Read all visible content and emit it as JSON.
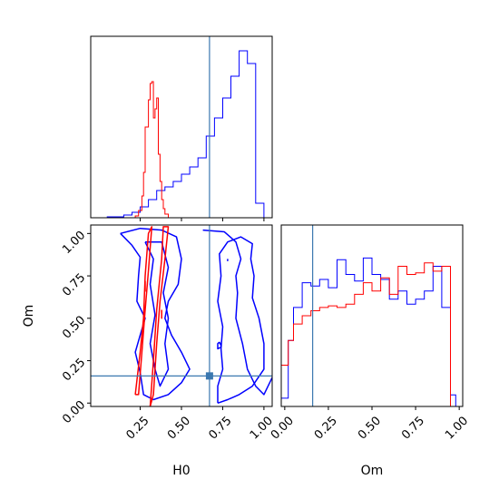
{
  "chart_data": {
    "type": "corner",
    "params": [
      "H0",
      "Om"
    ],
    "truth": {
      "H0": 0.67,
      "Om": 0.16
    },
    "colors": {
      "blue": "#0000ff",
      "red": "#ff0000",
      "truth": "#3b78b0"
    },
    "panels": [
      {
        "id": "hist-h0",
        "type": "histogram",
        "xlim": [
          -0.05,
          1.05
        ],
        "bins": [
          -0.05,
          0.0,
          0.05,
          0.1,
          0.15,
          0.2,
          0.25,
          0.3,
          0.35,
          0.4,
          0.45,
          0.5,
          0.55,
          0.6,
          0.65,
          0.7,
          0.75,
          0.8,
          0.85,
          0.9,
          0.95,
          1.0
        ],
        "series": [
          {
            "color": "blue",
            "values": [
              0.0,
              0.0,
              0.005,
              0.005,
              0.015,
              0.03,
              0.06,
              0.1,
              0.15,
              0.17,
              0.2,
              0.24,
              0.28,
              0.33,
              0.45,
              0.55,
              0.66,
              0.78,
              0.92,
              0.85,
              0.08
            ]
          }
        ],
        "peaked_series": [
          {
            "color": "red",
            "x": [
              0.15,
              0.2,
              0.22,
              0.24,
              0.26,
              0.27,
              0.28,
              0.29,
              0.3,
              0.31,
              0.32,
              0.33,
              0.34,
              0.35,
              0.36,
              0.37,
              0.38,
              0.39,
              0.4,
              0.42,
              0.45
            ],
            "values": [
              0.0,
              0.0,
              0.01,
              0.04,
              0.12,
              0.25,
              0.5,
              0.5,
              0.65,
              0.74,
              0.75,
              0.55,
              0.6,
              0.66,
              0.35,
              0.2,
              0.1,
              0.05,
              0.02,
              0.0,
              0.0
            ]
          }
        ]
      },
      {
        "id": "hist-om",
        "type": "histogram",
        "xlim": [
          -0.02,
          1.02
        ],
        "xticks": [
          0.0,
          0.25,
          0.5,
          0.75,
          1.0
        ],
        "xtick_labels": [
          "0.00",
          "0.25",
          "0.50",
          "0.75",
          "1.00"
        ],
        "xlabel": "Om",
        "bins": [
          -0.02,
          0.02,
          0.05,
          0.1,
          0.15,
          0.2,
          0.25,
          0.3,
          0.35,
          0.4,
          0.45,
          0.5,
          0.55,
          0.6,
          0.65,
          0.7,
          0.75,
          0.8,
          0.85,
          0.9,
          0.95,
          0.98,
          1.02
        ],
        "series": [
          {
            "color": "blue",
            "values": [
              0.05,
              0.4,
              0.6,
              0.75,
              0.73,
              0.77,
              0.72,
              0.89,
              0.8,
              0.76,
              0.9,
              0.8,
              0.77,
              0.65,
              0.7,
              0.62,
              0.65,
              0.7,
              0.85,
              0.6,
              0.07,
              0.0
            ]
          },
          {
            "color": "red",
            "values": [
              0.25,
              0.4,
              0.5,
              0.55,
              0.58,
              0.6,
              0.61,
              0.6,
              0.62,
              0.68,
              0.75,
              0.7,
              0.78,
              0.68,
              0.85,
              0.8,
              0.81,
              0.87,
              0.82,
              0.85,
              0.0,
              0.0
            ]
          }
        ]
      },
      {
        "id": "contour-h0-om",
        "type": "contour",
        "xlim": [
          -0.05,
          1.05
        ],
        "ylim": [
          -0.02,
          1.05
        ],
        "xticks": [
          0.25,
          0.5,
          0.75,
          1.0
        ],
        "xtick_labels": [
          "0.25",
          "0.50",
          "0.75",
          "1.00"
        ],
        "yticks": [
          0.0,
          0.25,
          0.5,
          0.75,
          1.0
        ],
        "ytick_labels": [
          "0.00",
          "0.25",
          "0.50",
          "0.75",
          "1.00"
        ],
        "xlabel": "H0",
        "ylabel": "Om",
        "contours": [
          {
            "color": "blue",
            "points": [
              [
                0.63,
                1.02
              ],
              [
                0.76,
                1.01
              ],
              [
                0.83,
                0.95
              ],
              [
                0.86,
                0.85
              ],
              [
                0.83,
                0.75
              ],
              [
                0.84,
                0.65
              ],
              [
                0.83,
                0.5
              ],
              [
                0.87,
                0.35
              ],
              [
                0.9,
                0.2
              ],
              [
                0.95,
                0.1
              ],
              [
                1.0,
                0.05
              ],
              [
                1.05,
                0.15
              ]
            ]
          },
          {
            "color": "blue",
            "points": [
              [
                0.72,
                0.0
              ],
              [
                0.72,
                0.1
              ],
              [
                0.75,
                0.2
              ],
              [
                0.74,
                0.32
              ],
              [
                0.75,
                0.45
              ],
              [
                0.72,
                0.6
              ],
              [
                0.74,
                0.75
              ],
              [
                0.73,
                0.88
              ],
              [
                0.78,
                0.95
              ],
              [
                0.86,
                0.98
              ],
              [
                0.93,
                0.94
              ],
              [
                0.92,
                0.85
              ],
              [
                0.94,
                0.75
              ],
              [
                0.93,
                0.62
              ],
              [
                0.97,
                0.5
              ],
              [
                1.0,
                0.35
              ],
              [
                1.0,
                0.2
              ],
              [
                0.93,
                0.1
              ],
              [
                0.85,
                0.05
              ],
              [
                0.78,
                0.02
              ],
              [
                0.72,
                0.0
              ]
            ]
          },
          {
            "color": "blue",
            "points": [
              [
                0.13,
                1.0
              ],
              [
                0.2,
                0.93
              ],
              [
                0.25,
                0.86
              ],
              [
                0.24,
                0.75
              ],
              [
                0.23,
                0.6
              ],
              [
                0.28,
                0.5
              ],
              [
                0.25,
                0.4
              ],
              [
                0.22,
                0.3
              ],
              [
                0.25,
                0.18
              ],
              [
                0.27,
                0.05
              ],
              [
                0.33,
                0.02
              ],
              [
                0.42,
                0.05
              ],
              [
                0.5,
                0.12
              ],
              [
                0.55,
                0.2
              ],
              [
                0.5,
                0.3
              ],
              [
                0.44,
                0.4
              ],
              [
                0.4,
                0.5
              ],
              [
                0.42,
                0.6
              ],
              [
                0.48,
                0.7
              ],
              [
                0.5,
                0.85
              ],
              [
                0.47,
                0.98
              ],
              [
                0.38,
                1.02
              ],
              [
                0.25,
                1.03
              ],
              [
                0.13,
                1.0
              ]
            ]
          },
          {
            "color": "blue",
            "points": [
              [
                0.28,
                0.95
              ],
              [
                0.33,
                0.85
              ],
              [
                0.31,
                0.7
              ],
              [
                0.34,
                0.52
              ],
              [
                0.31,
                0.35
              ],
              [
                0.34,
                0.2
              ],
              [
                0.37,
                0.1
              ],
              [
                0.42,
                0.2
              ],
              [
                0.4,
                0.35
              ],
              [
                0.42,
                0.5
              ],
              [
                0.39,
                0.65
              ],
              [
                0.42,
                0.8
              ],
              [
                0.38,
                0.95
              ],
              [
                0.28,
                0.95
              ]
            ]
          },
          {
            "color": "blue",
            "points": [
              [
                0.73,
                0.36
              ],
              [
                0.74,
                0.34
              ],
              [
                0.74,
                0.33
              ],
              [
                0.72,
                0.32
              ],
              [
                0.72,
                0.35
              ],
              [
                0.73,
                0.36
              ]
            ]
          },
          {
            "color": "blue",
            "points": [
              [
                0.78,
                0.85
              ],
              [
                0.78,
                0.84
              ],
              [
                0.78,
                0.85
              ]
            ]
          },
          {
            "color": "red",
            "points": [
              [
                0.22,
                0.05
              ],
              [
                0.25,
                0.3
              ],
              [
                0.27,
                0.5
              ],
              [
                0.28,
                0.75
              ],
              [
                0.3,
                1.0
              ],
              [
                0.32,
                1.04
              ],
              [
                0.3,
                0.78
              ],
              [
                0.28,
                0.55
              ],
              [
                0.26,
                0.3
              ],
              [
                0.24,
                0.05
              ],
              [
                0.22,
                0.05
              ]
            ]
          },
          {
            "color": "red",
            "points": [
              [
                0.31,
                -0.02
              ],
              [
                0.33,
                0.25
              ],
              [
                0.35,
                0.55
              ],
              [
                0.38,
                0.85
              ],
              [
                0.39,
                1.04
              ],
              [
                0.42,
                1.04
              ],
              [
                0.4,
                0.85
              ],
              [
                0.37,
                0.6
              ],
              [
                0.35,
                0.35
              ],
              [
                0.33,
                0.05
              ],
              [
                0.31,
                -0.02
              ]
            ]
          },
          {
            "color": "red",
            "points": [
              [
                0.28,
                0.72
              ],
              [
                0.28,
                0.66
              ],
              [
                0.28,
                0.72
              ]
            ]
          },
          {
            "color": "red",
            "points": [
              [
                0.38,
                0.55
              ],
              [
                0.38,
                0.5
              ],
              [
                0.38,
                0.55
              ]
            ]
          }
        ]
      }
    ]
  }
}
